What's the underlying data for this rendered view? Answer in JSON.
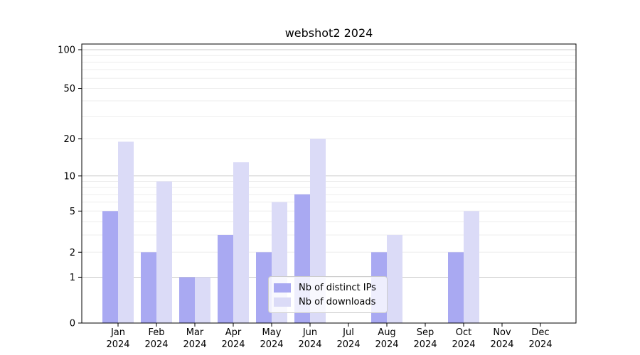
{
  "chart_data": {
    "type": "bar",
    "title": "webshot2 2024",
    "categories": [
      "Jan",
      "Feb",
      "Mar",
      "Apr",
      "May",
      "Jun",
      "Jul",
      "Aug",
      "Sep",
      "Oct",
      "Nov",
      "Dec"
    ],
    "category_year": "2024",
    "series": [
      {
        "name": "Nb of distinct IPs",
        "color": "#a9a9f2",
        "values": [
          5,
          2,
          1,
          3,
          2,
          7,
          0,
          2,
          0,
          2,
          0,
          0
        ]
      },
      {
        "name": "Nb of downloads",
        "color": "#dbdbf7",
        "values": [
          19,
          9,
          1,
          13,
          6,
          20,
          0,
          3,
          0,
          5,
          0,
          0
        ]
      }
    ],
    "xlabel": "",
    "ylabel": "",
    "yscale": "log1p (log-like axis that includes 0)",
    "ylim": [
      0,
      115
    ],
    "yticks": [
      0,
      1,
      2,
      5,
      10,
      20,
      50,
      100
    ],
    "gridlines_major": [
      1,
      10,
      100
    ],
    "gridlines_minor": [
      2,
      3,
      4,
      5,
      6,
      7,
      8,
      9,
      20,
      30,
      40,
      50,
      60,
      70,
      80,
      90
    ],
    "grid": true,
    "legend_position": "lower center"
  },
  "colors": {
    "background": "#ffffff",
    "axis": "#000000",
    "grid_major": "#cccccc",
    "grid_minor": "#ededed",
    "legend_border": "#cccccc"
  }
}
